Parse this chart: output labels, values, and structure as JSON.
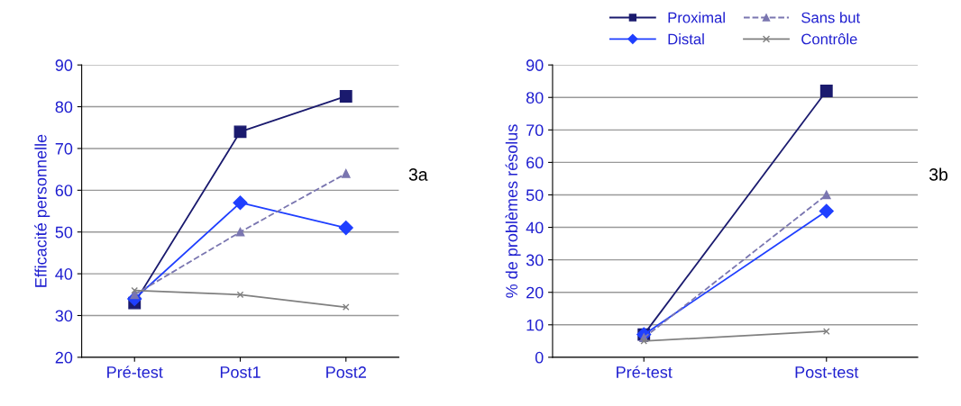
{
  "chart_data": [
    {
      "type": "line",
      "ylabel": "Efficacité personnelle",
      "categories": [
        "Pré-test",
        "Post1",
        "Post2"
      ],
      "ylim": [
        20,
        90
      ],
      "yticks": [
        20,
        30,
        40,
        50,
        60,
        70,
        80,
        90
      ],
      "grid": "y",
      "legend": false,
      "annotations": [
        "3a"
      ],
      "series": [
        {
          "color": "#1a1a6e",
          "marker": "square",
          "line_style": "solid",
          "values": [
            33,
            74,
            82.5
          ]
        },
        {
          "color": "#1f3fff",
          "marker": "diamond",
          "line_style": "solid",
          "values": [
            34,
            57,
            51
          ]
        },
        {
          "color": "#7a76b0",
          "marker": "triangle",
          "line_style": "dashed",
          "values": [
            35,
            50,
            64
          ]
        },
        {
          "color": "#808080",
          "marker": "cross",
          "line_style": "solid",
          "values": [
            36,
            35,
            32
          ]
        }
      ]
    },
    {
      "type": "line",
      "ylabel": "% de problèmes résolus",
      "categories": [
        "Pré-test",
        "Post-test"
      ],
      "ylim": [
        0,
        90
      ],
      "yticks": [
        0,
        10,
        20,
        30,
        40,
        50,
        60,
        70,
        80,
        90
      ],
      "grid": "y",
      "legend": "top",
      "annotations": [
        "3b"
      ],
      "series": [
        {
          "name": "Proximal",
          "color": "#1a1a6e",
          "marker": "square",
          "line_style": "solid",
          "values": [
            7,
            82
          ]
        },
        {
          "name": "Distal",
          "color": "#1f3fff",
          "marker": "diamond",
          "line_style": "solid",
          "values": [
            7,
            45
          ]
        },
        {
          "name": "Sans but",
          "color": "#7a76b0",
          "marker": "triangle",
          "line_style": "dashed",
          "values": [
            6,
            50
          ]
        },
        {
          "name": "Contrôle",
          "color": "#808080",
          "marker": "cross",
          "line_style": "solid",
          "values": [
            5,
            8
          ]
        }
      ]
    }
  ]
}
